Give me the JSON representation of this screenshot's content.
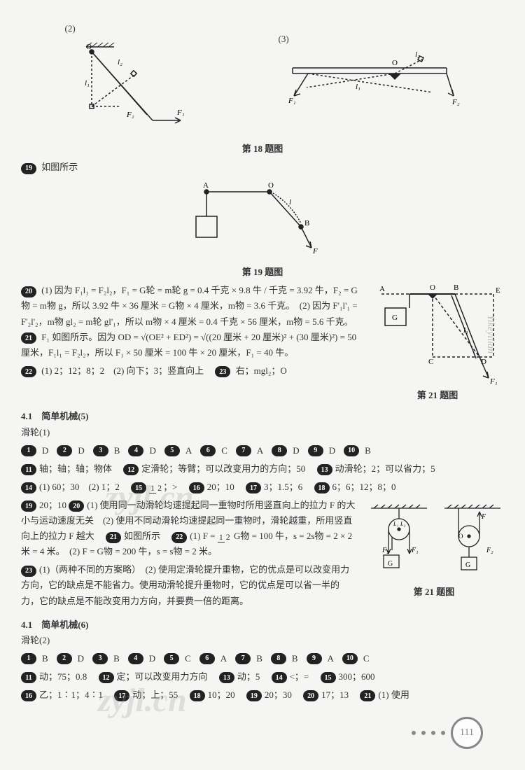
{
  "figures": {
    "fig18": {
      "label_left": "(2)",
      "label_right": "(3)",
      "caption": "第 18 题图",
      "left": {
        "O": "O",
        "l1": "l₁",
        "l2": "l₂",
        "F1": "F₁",
        "F2": "F₂"
      },
      "right": {
        "O": "O",
        "l1": "l₁",
        "l2": "l₂",
        "F1": "F₁",
        "F2": "F₂"
      }
    },
    "fig19": {
      "caption": "第 19 题图",
      "A": "A",
      "O": "O",
      "B": "B",
      "l": "l",
      "F": "F"
    },
    "fig21a": {
      "caption": "第 21 题图",
      "A": "A",
      "O": "O",
      "B": "B",
      "E": "E",
      "G": "G",
      "C": "C",
      "D": "D",
      "F1": "F₁",
      "l1": "l₁"
    },
    "fig21b": {
      "caption": "第 21 题图",
      "G": "G",
      "F": "F",
      "F1": "F₁",
      "F2": "F₂",
      "O": "O",
      "L1": "L₁",
      "L2": "L₂"
    }
  },
  "q19_intro": "如图所示",
  "q20": {
    "part1": "(1) 因为 F₁l₁ = F₂l₂，F₁ = G轮 = m轮 g = 0.4 千克 × 9.8 牛 / 千克 = 3.92 牛，F₂ = G物 = m物 g，所以 3.92 牛 × 36 厘米 = G物 × 4 厘米，m物 = 3.6 千克。　(2) 因为 F'₁l'₁ = F'₂l'₂，m物 gl₂ = m轮 gl'₁，所以 m物 × 4 厘米 = 0.4 千克 × 56 厘米，m物 = 5.6 千克。"
  },
  "q21a": "F₁ 如图所示。因为 OD = √(OE² + ED²) = √((20 厘米 + 20 厘米)² + (30 厘米)²) = 50 厘米，F₁l₁ = F₂l₂，所以 F₁ × 50 厘米 = 100 牛 × 20 厘米，F₁ = 40 牛。",
  "q22": "(1) 2；12；8；2　(2) 向下；3；竖直向上",
  "q23": "右；mgl₂；O",
  "section5": {
    "title": "4.1　简单机械(5)",
    "subtitle": "滑轮(1)",
    "mc": [
      {
        "n": "1",
        "a": "D"
      },
      {
        "n": "2",
        "a": "D"
      },
      {
        "n": "3",
        "a": "B"
      },
      {
        "n": "4",
        "a": "D"
      },
      {
        "n": "5",
        "a": "A"
      },
      {
        "n": "6",
        "a": "C"
      },
      {
        "n": "7",
        "a": "A"
      },
      {
        "n": "8",
        "a": "D"
      },
      {
        "n": "9",
        "a": "D"
      },
      {
        "n": "10",
        "a": "B"
      }
    ],
    "q11": "轴；轴；轴；物体",
    "q12": "定滑轮；等臂；可以改变用力的方向；50",
    "q13": "动滑轮；2；可以省力；5",
    "q14": "(1) 60；30　(2) 1；2",
    "q15_pre": "",
    "q15": "；>",
    "q16": "20；10",
    "q17": "3；1.5；6",
    "q18": "6；6；12；8；0",
    "q19": "20；10",
    "q20": "(1) 使用同一动滑轮均速提起同一重物时所用竖直向上的拉力 F 的大小与运动速度无关　(2) 使用不同动滑轮均速提起同一重物时，滑轮越重，所用竖直向上的拉力 F 越大",
    "q21": "如图所示",
    "q22_a": "(1) F = ",
    "q22_b": " G物 = 100 牛，s = 2s物 = 2 × 2 米 = 4 米。　(2) F = G物 = 200 牛，s = s物 = 2 米。",
    "q23": "(1)（两种不同的方案略）　(2) 使用定滑轮提升重物，它的优点是可以改变用力方向，它的缺点是不能省力。使用动滑轮提升重物时，它的优点是可以省一半的力，它的缺点是不能改变用力方向，并要费一倍的距离。"
  },
  "section6": {
    "title": "4.1　简单机械(6)",
    "subtitle": "滑轮(2)",
    "mc": [
      {
        "n": "1",
        "a": "B"
      },
      {
        "n": "2",
        "a": "D"
      },
      {
        "n": "3",
        "a": "B"
      },
      {
        "n": "4",
        "a": "D"
      },
      {
        "n": "5",
        "a": "C"
      },
      {
        "n": "6",
        "a": "A"
      },
      {
        "n": "7",
        "a": "B"
      },
      {
        "n": "8",
        "a": "B"
      },
      {
        "n": "9",
        "a": "A"
      },
      {
        "n": "10",
        "a": "C"
      }
    ],
    "q11": "动；75；0.8",
    "q12": "定；可以改变用力方向",
    "q13": "动；5",
    "q14": "<；=",
    "q15": "300；600",
    "q16": "乙；1∶1；4∶1",
    "q17": "动；上；55",
    "q18": "10；20",
    "q19": "20；30",
    "q20": "17；13",
    "q21": "(1) 使用"
  },
  "watermarks": {
    "w": "zyjl.cn",
    "side": "Yikeyilian"
  },
  "page": "111",
  "colors": {
    "stroke": "#222",
    "dashed": "#444",
    "bg": "#f5f5f3"
  }
}
